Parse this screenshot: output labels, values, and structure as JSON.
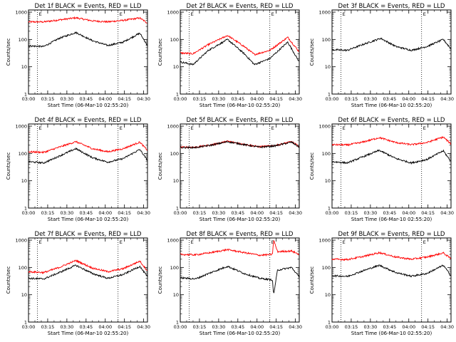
{
  "chart_data": {
    "type": "line",
    "layout": "3x3 panel grid",
    "shared": {
      "xlabel": "Start Time (06-Mar-10 02:55:20)",
      "ylabel": "Counts/sec",
      "x_tick_labels": [
        "03:00",
        "03:15",
        "03:30",
        "03:45",
        "04:00",
        "04:15",
        "04:30"
      ],
      "x_tick_minutes": [
        0,
        15,
        30,
        45,
        60,
        75,
        90
      ],
      "xlim_minutes_after_03_00": [
        0,
        93
      ],
      "y_scale": "log",
      "ylim": [
        1,
        1200
      ],
      "y_tick_values": [
        1,
        10,
        100,
        1000
      ],
      "y_tick_labels": [
        "1",
        "10",
        "100",
        "1000"
      ],
      "series_colors": {
        "events": "#000000",
        "lld": "#ff0000"
      },
      "event_markers": [
        {
          "time": "03:07",
          "style": "dotted",
          "label": ""
        },
        {
          "time": "04:10",
          "style": "dotted",
          "label": ""
        }
      ],
      "corner_marker_label": "E"
    },
    "panels": [
      {
        "title": "Det 1f BLACK = Events, RED = LLD",
        "events": {
          "x_min": [
            0,
            12,
            24,
            37,
            50,
            62,
            74,
            87,
            93
          ],
          "y": [
            58,
            55,
            110,
            180,
            90,
            60,
            80,
            170,
            60
          ]
        },
        "lld": {
          "x_min": [
            0,
            12,
            24,
            37,
            50,
            62,
            74,
            87,
            93
          ],
          "y": [
            440,
            440,
            520,
            620,
            480,
            440,
            500,
            610,
            400
          ]
        }
      },
      {
        "title": "Det 2f BLACK = Events, RED = LLD",
        "events": {
          "x_min": [
            0,
            10,
            22,
            37,
            50,
            58,
            70,
            84,
            93
          ],
          "y": [
            15,
            12,
            40,
            100,
            30,
            12,
            20,
            80,
            15
          ]
        },
        "lld": {
          "x_min": [
            0,
            10,
            22,
            37,
            50,
            58,
            70,
            84,
            93
          ],
          "y": [
            32,
            30,
            65,
            140,
            55,
            28,
            40,
            120,
            35
          ]
        }
      },
      {
        "title": "Det 3f BLACK = Events, RED = LLD",
        "events": {
          "x_min": [
            0,
            12,
            24,
            38,
            50,
            62,
            74,
            87,
            93
          ],
          "y": [
            42,
            40,
            65,
            110,
            55,
            40,
            55,
            100,
            45
          ]
        },
        "lld": null
      },
      {
        "title": "Det 4f BLACK = Events, RED = LLD",
        "events": {
          "x_min": [
            0,
            12,
            24,
            37,
            50,
            62,
            74,
            87,
            93
          ],
          "y": [
            50,
            45,
            80,
            150,
            70,
            48,
            65,
            140,
            55
          ]
        },
        "lld": {
          "x_min": [
            0,
            12,
            24,
            37,
            50,
            62,
            74,
            87,
            93
          ],
          "y": [
            115,
            110,
            170,
            270,
            150,
            115,
            150,
            260,
            130
          ]
        }
      },
      {
        "title": "Det 5f BLACK = Events, RED = LLD",
        "events": {
          "x_min": [
            0,
            12,
            24,
            37,
            50,
            62,
            74,
            87,
            93
          ],
          "y": [
            165,
            165,
            200,
            270,
            210,
            170,
            190,
            260,
            170
          ]
        },
        "lld": {
          "x_min": [
            0,
            12,
            24,
            37,
            50,
            62,
            74,
            87,
            93
          ],
          "y": [
            170,
            170,
            205,
            280,
            215,
            175,
            195,
            270,
            180
          ]
        }
      },
      {
        "title": "Det 6f BLACK = Events, RED = LLD",
        "events": {
          "x_min": [
            0,
            12,
            24,
            37,
            50,
            62,
            74,
            87,
            93
          ],
          "y": [
            50,
            45,
            75,
            130,
            65,
            45,
            60,
            125,
            50
          ]
        },
        "lld": {
          "x_min": [
            0,
            12,
            24,
            37,
            50,
            62,
            74,
            87,
            93
          ],
          "y": [
            210,
            205,
            260,
            380,
            250,
            210,
            250,
            400,
            220
          ]
        }
      },
      {
        "title": "Det 7f BLACK = Events, RED = LLD",
        "events": {
          "x_min": [
            0,
            12,
            24,
            37,
            50,
            62,
            74,
            87,
            93
          ],
          "y": [
            40,
            38,
            65,
            120,
            60,
            40,
            55,
            110,
            45
          ]
        },
        "lld": {
          "x_min": [
            0,
            12,
            24,
            37,
            50,
            62,
            74,
            87,
            93
          ],
          "y": [
            70,
            65,
            100,
            180,
            95,
            70,
            90,
            170,
            75
          ]
        }
      },
      {
        "title": "Det 8f BLACK = Events, RED = LLD",
        "events": {
          "x_min": [
            0,
            12,
            24,
            37,
            50,
            62,
            72,
            73,
            76,
            87,
            93
          ],
          "y": [
            42,
            38,
            65,
            110,
            60,
            40,
            35,
            10,
            80,
            100,
            45
          ]
        },
        "lld": {
          "x_min": [
            0,
            12,
            24,
            37,
            50,
            62,
            72,
            73,
            76,
            87,
            93
          ],
          "y": [
            300,
            290,
            350,
            450,
            350,
            280,
            300,
            1000,
            380,
            400,
            300
          ]
        }
      },
      {
        "title": "Det 9f BLACK = Events, RED = LLD",
        "events": {
          "x_min": [
            0,
            12,
            24,
            37,
            50,
            62,
            74,
            87,
            93
          ],
          "y": [
            50,
            47,
            75,
            120,
            65,
            48,
            60,
            120,
            50
          ]
        },
        "lld": {
          "x_min": [
            0,
            12,
            24,
            37,
            50,
            62,
            74,
            87,
            93
          ],
          "y": [
            200,
            195,
            250,
            350,
            240,
            200,
            240,
            340,
            210
          ]
        }
      }
    ]
  }
}
